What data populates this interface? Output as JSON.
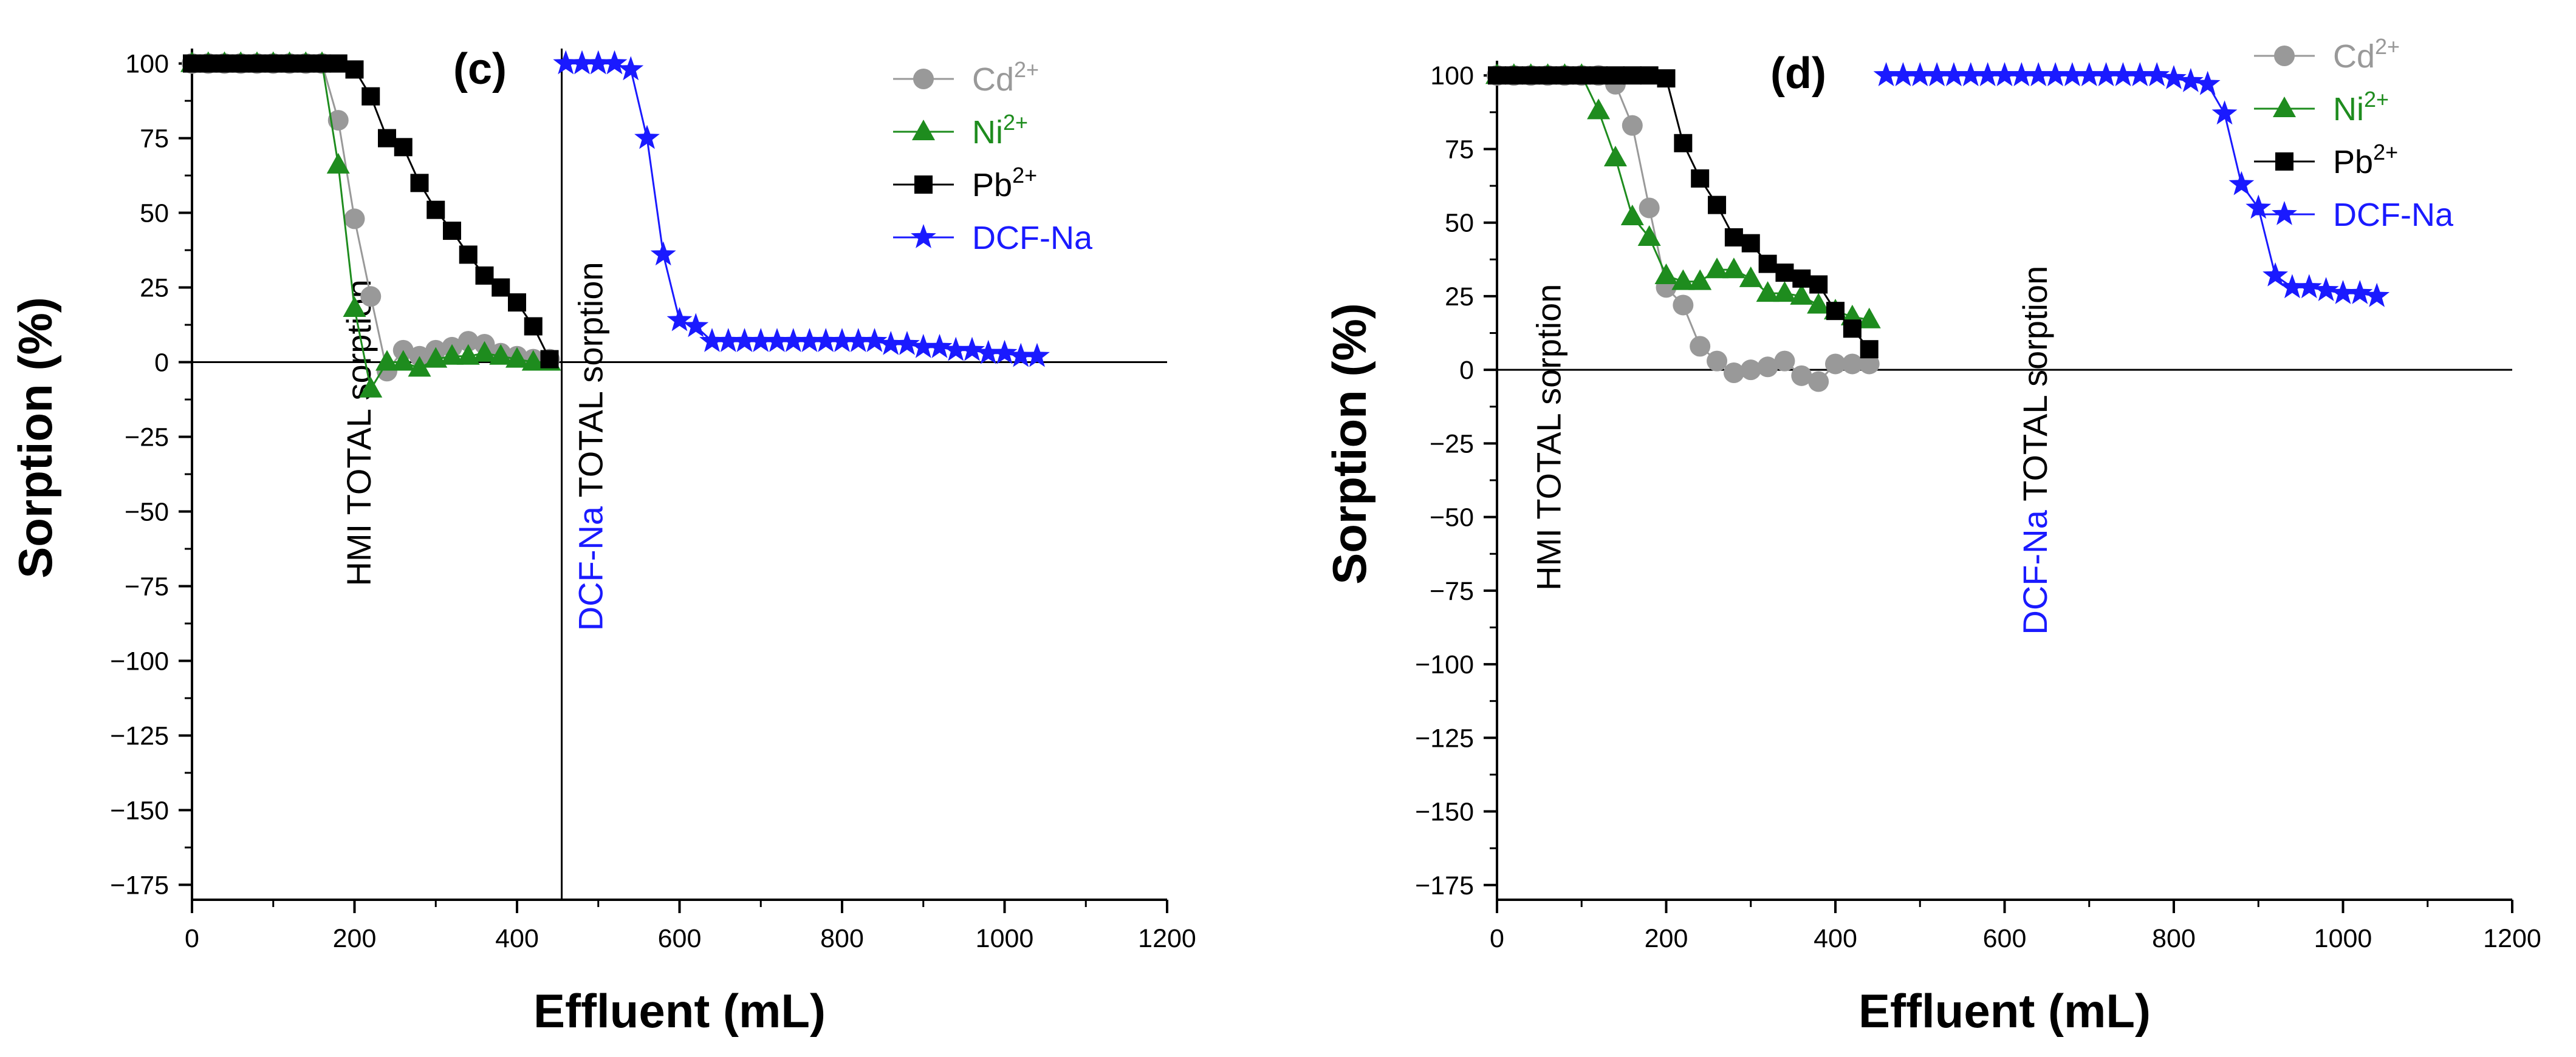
{
  "chart_data": [
    {
      "type": "line",
      "panel_label": "(c)",
      "xlabel": "Effluent (mL)",
      "ylabel": "Sorption (%)",
      "xlim": [
        0,
        1200
      ],
      "ylim": [
        -180,
        105
      ],
      "x_ticks": [
        0,
        200,
        400,
        600,
        800,
        1000,
        1200
      ],
      "y_ticks": [
        -175,
        -150,
        -125,
        -100,
        -75,
        -50,
        -25,
        0,
        25,
        50,
        75,
        100
      ],
      "tick_labels_x": [
        "0",
        "200",
        "400",
        "600",
        "800",
        "1000",
        "1200"
      ],
      "tick_labels_y": [
        "−175",
        "−150",
        "−125",
        "−100",
        "−75",
        "−50",
        "−25",
        "0",
        "25",
        "50",
        "75",
        "100"
      ],
      "series": [
        {
          "name": "Cd2+",
          "base": "Cd",
          "sup": "2+",
          "color": "#999999",
          "marker": "circle",
          "x": [
            0,
            20,
            40,
            60,
            80,
            100,
            120,
            140,
            160,
            180,
            200,
            220,
            240,
            260,
            280,
            300,
            320,
            340,
            360,
            380,
            400,
            420,
            440
          ],
          "y": [
            100,
            100,
            100,
            100,
            100,
            100,
            100,
            100,
            100,
            81,
            48,
            22,
            -3,
            4,
            2,
            4,
            5,
            7,
            6,
            3,
            2,
            1,
            1
          ]
        },
        {
          "name": "Ni2+",
          "base": "Ni",
          "sup": "2+",
          "color": "#1e8c1e",
          "marker": "triangle",
          "x": [
            0,
            20,
            40,
            60,
            80,
            100,
            120,
            140,
            160,
            180,
            200,
            220,
            240,
            260,
            280,
            300,
            320,
            340,
            360,
            380,
            400,
            420,
            440
          ],
          "y": [
            100,
            100,
            100,
            100,
            100,
            100,
            100,
            100,
            100,
            66,
            18,
            -9,
            0,
            0,
            -2,
            1,
            2,
            2,
            3,
            2,
            1,
            0,
            0
          ]
        },
        {
          "name": "Pb2+",
          "base": "Pb",
          "sup": "2+",
          "color": "#000000",
          "marker": "square",
          "x": [
            0,
            20,
            40,
            60,
            80,
            100,
            120,
            140,
            160,
            180,
            200,
            220,
            240,
            260,
            280,
            300,
            320,
            340,
            360,
            380,
            400,
            420,
            440
          ],
          "y": [
            100,
            100,
            100,
            100,
            100,
            100,
            100,
            100,
            100,
            100,
            98,
            89,
            75,
            72,
            60,
            51,
            44,
            36,
            29,
            25,
            20,
            12,
            1
          ]
        },
        {
          "name": "DCF-Na",
          "base": "DCF-Na",
          "sup": "",
          "color": "#1a1aff",
          "marker": "star",
          "x": [
            460,
            480,
            500,
            520,
            540,
            560,
            580,
            600,
            620,
            640,
            660,
            680,
            700,
            720,
            740,
            760,
            780,
            800,
            820,
            840,
            860,
            880,
            900,
            920,
            940,
            960,
            980,
            1000,
            1020,
            1040
          ],
          "y": [
            100,
            100,
            100,
            100,
            98,
            75,
            36,
            14,
            12,
            7,
            7,
            7,
            7,
            7,
            7,
            7,
            7,
            7,
            7,
            7,
            6,
            6,
            5,
            5,
            4,
            4,
            3,
            3,
            2,
            2
          ]
        }
      ],
      "vertical_lines": [
        455
      ],
      "annotations": [
        {
          "parts": [
            {
              "text": "HMI TOTAL sorption",
              "color": "#000000"
            }
          ],
          "x": 220,
          "y": -75
        },
        {
          "parts": [
            {
              "text": "DCF-Na",
              "color": "#1a1aff"
            },
            {
              "text": " TOTAL sorption",
              "color": "#000000"
            }
          ],
          "x": 505,
          "y": -90
        }
      ],
      "legend_position": "top-right"
    },
    {
      "type": "line",
      "panel_label": "(d)",
      "xlabel": "Effluent (mL)",
      "ylabel": "Sorption (%)",
      "xlim": [
        0,
        1200
      ],
      "ylim": [
        -180,
        105
      ],
      "x_ticks": [
        0,
        200,
        400,
        600,
        800,
        1000,
        1200
      ],
      "y_ticks": [
        -175,
        -150,
        -125,
        -100,
        -75,
        -50,
        -25,
        0,
        25,
        50,
        75,
        100
      ],
      "tick_labels_x": [
        "0",
        "200",
        "400",
        "600",
        "800",
        "1000",
        "1200"
      ],
      "tick_labels_y": [
        "−175",
        "−150",
        "−125",
        "−100",
        "−75",
        "−50",
        "−25",
        "0",
        "25",
        "50",
        "75",
        "100"
      ],
      "series": [
        {
          "name": "Cd2+",
          "base": "Cd",
          "sup": "2+",
          "color": "#999999",
          "marker": "circle",
          "x": [
            0,
            20,
            40,
            60,
            80,
            100,
            120,
            140,
            160,
            180,
            200,
            220,
            240,
            260,
            280,
            300,
            320,
            340,
            360,
            380,
            400,
            420,
            440
          ],
          "y": [
            100,
            100,
            100,
            100,
            100,
            100,
            100,
            97,
            83,
            55,
            28,
            22,
            8,
            3,
            -1,
            0,
            1,
            3,
            -2,
            -4,
            2,
            2,
            2
          ]
        },
        {
          "name": "Ni2+",
          "base": "Ni",
          "sup": "2+",
          "color": "#1e8c1e",
          "marker": "triangle",
          "x": [
            0,
            20,
            40,
            60,
            80,
            100,
            120,
            140,
            160,
            180,
            200,
            220,
            240,
            260,
            280,
            300,
            320,
            340,
            360,
            380,
            400,
            420,
            440
          ],
          "y": [
            100,
            100,
            100,
            100,
            100,
            100,
            88,
            72,
            52,
            45,
            32,
            30,
            30,
            34,
            34,
            31,
            26,
            26,
            25,
            22,
            20,
            18,
            17
          ]
        },
        {
          "name": "Pb2+",
          "base": "Pb",
          "sup": "2+",
          "color": "#000000",
          "marker": "square",
          "x": [
            0,
            20,
            40,
            60,
            80,
            100,
            120,
            140,
            160,
            180,
            200,
            220,
            240,
            260,
            280,
            300,
            320,
            340,
            360,
            380,
            400,
            420,
            440
          ],
          "y": [
            100,
            100,
            100,
            100,
            100,
            100,
            100,
            100,
            100,
            100,
            99,
            77,
            65,
            56,
            45,
            43,
            36,
            33,
            31,
            29,
            20,
            14,
            7
          ]
        },
        {
          "name": "DCF-Na",
          "base": "DCF-Na",
          "sup": "",
          "color": "#1a1aff",
          "marker": "star",
          "x": [
            460,
            480,
            500,
            520,
            540,
            560,
            580,
            600,
            620,
            640,
            660,
            680,
            700,
            720,
            740,
            760,
            780,
            800,
            820,
            840,
            860,
            880,
            900,
            920,
            940,
            960,
            980,
            1000,
            1020,
            1040
          ],
          "y": [
            100,
            100,
            100,
            100,
            100,
            100,
            100,
            100,
            100,
            100,
            100,
            100,
            100,
            100,
            100,
            100,
            100,
            99,
            98,
            97,
            87,
            63,
            55,
            32,
            28,
            28,
            27,
            26,
            26,
            25
          ]
        }
      ],
      "vertical_lines": [],
      "annotations": [
        {
          "parts": [
            {
              "text": "HMI TOTAL sorption",
              "color": "#000000"
            }
          ],
          "x": 75,
          "y": -75
        },
        {
          "parts": [
            {
              "text": "DCF-Na",
              "color": "#1a1aff"
            },
            {
              "text": " TOTAL sorption",
              "color": "#000000"
            }
          ],
          "x": 650,
          "y": -90
        }
      ],
      "legend_position": "top-right"
    }
  ]
}
